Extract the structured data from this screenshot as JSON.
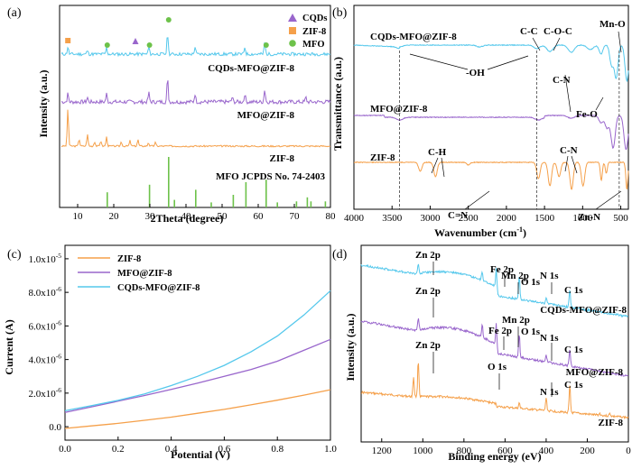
{
  "colors": {
    "orange": "#f5a04a",
    "purple": "#9966cc",
    "cyan": "#55c8ec",
    "green": "#6dc24a",
    "black": "#000000"
  },
  "chart_data": [
    {
      "panel": "(a)",
      "type": "line",
      "xlabel": "2Theta (degree)",
      "ylabel": "Intensity (a.u.)",
      "xlim": [
        5,
        80
      ],
      "xticks": [
        "10",
        "20",
        "30",
        "40",
        "50",
        "60",
        "70",
        "80"
      ],
      "legend": [
        "CQDs",
        "ZIF-8",
        "MFO"
      ],
      "series": [
        {
          "name": "ZIF-8",
          "peaks": [
            [
              7.3,
              42
            ],
            [
              10.4,
              8
            ],
            [
              12.7,
              13
            ],
            [
              14.7,
              5
            ],
            [
              16.4,
              6
            ],
            [
              18.0,
              10
            ],
            [
              22.1,
              5
            ],
            [
              24.5,
              6
            ],
            [
              26.7,
              7
            ],
            [
              29.6,
              4
            ],
            [
              31.5,
              4
            ]
          ]
        },
        {
          "name": "MFO@ZIF-8",
          "peaks": [
            [
              7.3,
              9
            ],
            [
              12.7,
              5
            ],
            [
              18.0,
              9
            ],
            [
              29.7,
              10
            ],
            [
              34.9,
              26
            ],
            [
              42.5,
              9
            ],
            [
              52.8,
              5
            ],
            [
              56.3,
              9
            ],
            [
              61.8,
              14
            ],
            [
              73.2,
              5
            ]
          ]
        },
        {
          "name": "CQDs-MFO@ZIF-8",
          "peaks": [
            [
              7.3,
              8
            ],
            [
              12.7,
              4
            ],
            [
              18.0,
              7
            ],
            [
              29.7,
              8
            ],
            [
              34.9,
              23
            ],
            [
              42.5,
              8
            ],
            [
              56.3,
              8
            ],
            [
              61.8,
              13
            ]
          ]
        }
      ],
      "reference": {
        "label": "MFO JCPDS No. 74-2403",
        "lines": [
          [
            18.2,
            0.3
          ],
          [
            29.9,
            0.45
          ],
          [
            35.2,
            1.0
          ],
          [
            36.8,
            0.15
          ],
          [
            42.7,
            0.35
          ],
          [
            47.0,
            0.1
          ],
          [
            53.1,
            0.25
          ],
          [
            56.6,
            0.5
          ],
          [
            62.2,
            0.55
          ],
          [
            65.3,
            0.1
          ],
          [
            70.6,
            0.12
          ],
          [
            73.6,
            0.2
          ],
          [
            74.6,
            0.12
          ],
          [
            78.6,
            0.12
          ]
        ]
      },
      "markers": [
        {
          "kind": "ZIF-8",
          "x": 7.3
        },
        {
          "kind": "MFO",
          "x": 18.2
        },
        {
          "kind": "CQDs",
          "x": 26.0
        },
        {
          "kind": "MFO",
          "x": 29.9
        },
        {
          "kind": "MFO",
          "x": 35.2
        },
        {
          "kind": "MFO",
          "x": 62.2
        }
      ]
    },
    {
      "panel": "(b)",
      "type": "line",
      "xlabel": "Wavenumber (cm",
      "xlabel_sup": "-1",
      "xlabel_end": ")",
      "ylabel": "Transmittance (a.u.)",
      "xlim": [
        4000,
        400
      ],
      "xticks": [
        "4000",
        "3500",
        "3000",
        "2500",
        "2000",
        "1500",
        "1000",
        "500"
      ],
      "series": [
        {
          "name": "CQDs-MFO@ZIF-8",
          "dips": [
            [
              3400,
              2
            ],
            [
              2350,
              2
            ],
            [
              1600,
              4
            ],
            [
              1430,
              7
            ],
            [
              1150,
              8
            ],
            [
              900,
              5
            ],
            [
              760,
              10
            ],
            [
              620,
              22
            ],
            [
              560,
              36
            ],
            [
              420,
              40
            ]
          ]
        },
        {
          "name": "MFO@ZIF-8",
          "dips": [
            [
              3400,
              3
            ],
            [
              1580,
              3
            ],
            [
              1150,
              3
            ],
            [
              760,
              8
            ],
            [
              680,
              14
            ],
            [
              600,
              36
            ],
            [
              430,
              38
            ]
          ]
        },
        {
          "name": "ZIF-8",
          "dips": [
            [
              3130,
              10
            ],
            [
              2930,
              16
            ],
            [
              2500,
              3
            ],
            [
              1580,
              18
            ],
            [
              1430,
              26
            ],
            [
              1310,
              16
            ],
            [
              1145,
              30
            ],
            [
              995,
              26
            ],
            [
              755,
              20
            ],
            [
              690,
              12
            ],
            [
              420,
              30
            ]
          ]
        }
      ],
      "annotations": [
        "C-C",
        "C-O-C",
        "Mn-O",
        "-OH",
        "C-N",
        "Fe-O",
        "C-H",
        "C-N",
        "C=N",
        "Zn-N"
      ]
    },
    {
      "panel": "(c)",
      "type": "line",
      "xlabel": "Potential (V)",
      "ylabel": "Current (A)",
      "xlim": [
        0,
        1.0
      ],
      "ylim": [
        -8e-07,
        1.08e-05
      ],
      "xticks": [
        "0.0",
        "0.2",
        "0.4",
        "0.6",
        "0.8",
        "1.0"
      ],
      "yticks": [
        {
          "v": 0,
          "label": "0.0"
        },
        {
          "v": 2e-06,
          "label": "2.0x10",
          "exp": "-6"
        },
        {
          "v": 4e-06,
          "label": "4.0x10",
          "exp": "-6"
        },
        {
          "v": 6e-06,
          "label": "6.0x10",
          "exp": "-6"
        },
        {
          "v": 8e-06,
          "label": "8.0x10",
          "exp": "-6"
        },
        {
          "v": 1e-05,
          "label": "1.0x10",
          "exp": "-5"
        }
      ],
      "x": [
        0,
        0.1,
        0.2,
        0.3,
        0.4,
        0.5,
        0.6,
        0.7,
        0.8,
        0.9,
        1.0
      ],
      "series": [
        {
          "name": "ZIF-8",
          "values": [
            -1e-07,
            5e-08,
            2e-07,
            3.8e-07,
            5.7e-07,
            8e-07,
            1.03e-06,
            1.3e-06,
            1.58e-06,
            1.88e-06,
            2.2e-06
          ]
        },
        {
          "name": "MFO@ZIF-8",
          "values": [
            8.5e-07,
            1.18e-06,
            1.52e-06,
            1.86e-06,
            2.22e-06,
            2.6e-06,
            3e-06,
            3.4e-06,
            3.9e-06,
            4.55e-06,
            5.2e-06
          ]
        },
        {
          "name": "CQDs-MFO@ZIF-8",
          "values": [
            9.5e-07,
            1.25e-06,
            1.57e-06,
            1.95e-06,
            2.45e-06,
            3e-06,
            3.65e-06,
            4.45e-06,
            5.4e-06,
            6.65e-06,
            8.1e-06
          ]
        }
      ]
    },
    {
      "panel": "(d)",
      "type": "line",
      "xlabel": "Binding energy (eV)",
      "ylabel": "Intensity (a.u.)",
      "xlim": [
        1300,
        0
      ],
      "xticks": [
        "1200",
        "1000",
        "800",
        "600",
        "400",
        "200",
        "0"
      ],
      "series": [
        {
          "name": "ZIF-8",
          "peaks": [
            [
              1045,
              22
            ],
            [
              1022,
              40
            ],
            [
              531,
              6
            ],
            [
              400,
              14
            ],
            [
              285,
              30
            ],
            [
              140,
              2
            ],
            [
              90,
              3
            ]
          ]
        },
        {
          "name": "MFO@ZIF-8",
          "peaks": [
            [
              1022,
              12
            ],
            [
              711,
              14
            ],
            [
              642,
              24
            ],
            [
              531,
              25
            ],
            [
              400,
              8
            ],
            [
              285,
              18
            ]
          ]
        },
        {
          "name": "CQDs-MFO@ZIF-8",
          "peaks": [
            [
              1022,
              10
            ],
            [
              711,
              10
            ],
            [
              642,
              22
            ],
            [
              531,
              26
            ],
            [
              400,
              7
            ],
            [
              285,
              20
            ]
          ]
        }
      ],
      "annotations": [
        "Zn 2p",
        "Fe 2p",
        "Mn 2p",
        "O 1s",
        "N 1s",
        "C 1s"
      ]
    }
  ]
}
